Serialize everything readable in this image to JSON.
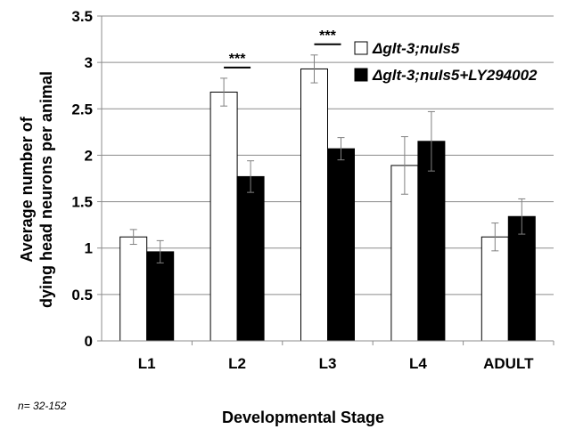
{
  "chart_data": {
    "type": "bar",
    "categories": [
      "L1",
      "L2",
      "L3",
      "L4",
      "ADULT"
    ],
    "series": [
      {
        "name": "Δglt-3;nuIs5",
        "color": "#ffffff",
        "values": [
          1.12,
          2.68,
          2.93,
          1.89,
          1.12
        ],
        "errors": [
          0.08,
          0.15,
          0.15,
          0.31,
          0.15
        ]
      },
      {
        "name": "Δglt-3;nuIs5+LY294002",
        "color": "#000000",
        "values": [
          0.96,
          1.77,
          2.07,
          2.15,
          1.34
        ],
        "errors": [
          0.12,
          0.17,
          0.12,
          0.32,
          0.19
        ]
      }
    ],
    "significance": [
      {
        "category": "L2",
        "label": "***"
      },
      {
        "category": "L3",
        "label": "***"
      }
    ],
    "xlabel": "Developmental Stage",
    "ylabel_lines": [
      "Average number of",
      "dying head neurons  per animal"
    ],
    "ylim": [
      0,
      3.5
    ],
    "yticks": [
      0,
      0.5,
      1,
      1.5,
      2,
      2.5,
      3,
      3.5
    ],
    "ytick_labels": [
      "0",
      "0.5",
      "1",
      "1.5",
      "2",
      "2.5",
      "3",
      "3.5"
    ],
    "grid": true,
    "legend_position": "top-right",
    "note": "n= 32-152"
  }
}
